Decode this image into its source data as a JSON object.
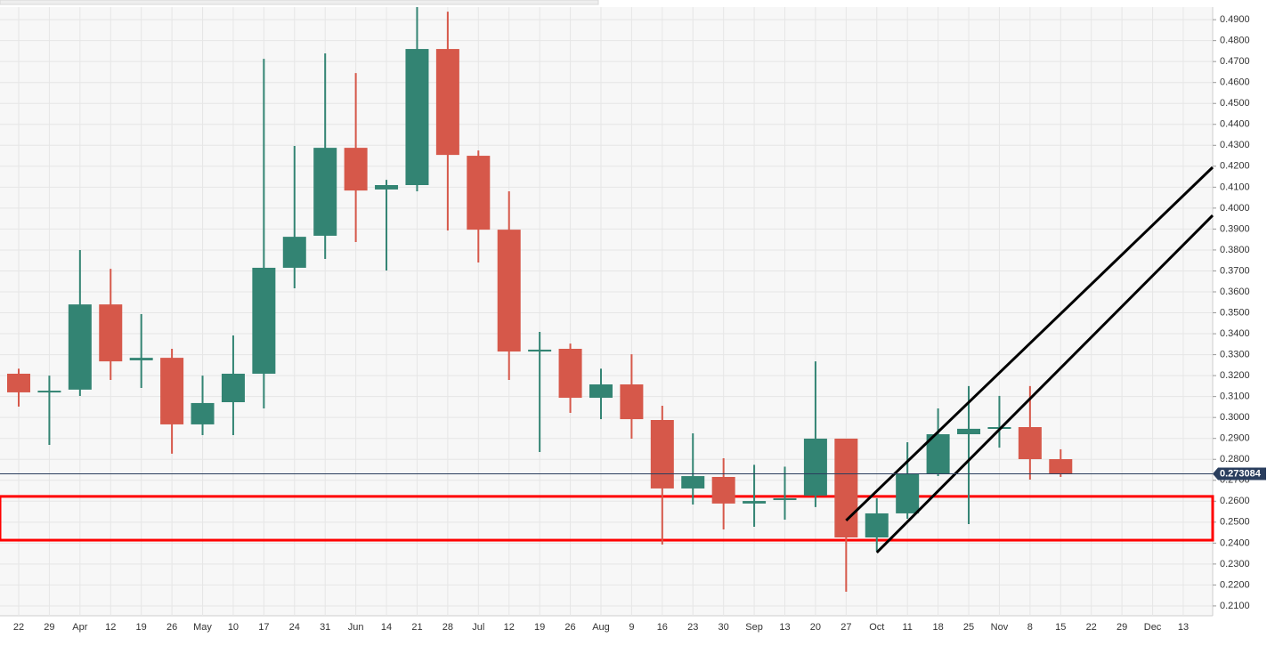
{
  "chart_data": {
    "type": "candlestick",
    "categories": [
      "22",
      "29",
      "Apr",
      "12",
      "19",
      "26",
      "May",
      "10",
      "17",
      "24",
      "31",
      "Jun",
      "14",
      "21",
      "28",
      "Jul",
      "12",
      "19",
      "26",
      "Aug",
      "9",
      "16",
      "23",
      "30",
      "Sep",
      "13",
      "20",
      "27",
      "Oct",
      "11",
      "18",
      "25",
      "Nov",
      "8",
      "15",
      "22",
      "29",
      "Dec",
      "13"
    ],
    "open": [
      0.3209,
      0.3123,
      0.3133,
      0.354,
      0.3273,
      0.3285,
      0.2967,
      0.3073,
      0.3209,
      0.3715,
      0.3868,
      0.4288,
      0.4089,
      0.411,
      0.476,
      0.425,
      0.3897,
      0.3315,
      0.3328,
      0.3094,
      0.3158,
      0.2988,
      0.2661,
      0.2716,
      0.2589,
      0.261,
      0.2627,
      0.2899,
      0.2427,
      0.2542,
      0.2729,
      0.292,
      0.295,
      0.2954,
      0.2801,
      null,
      null,
      null,
      null
    ],
    "high": [
      0.3233,
      0.32,
      0.38,
      0.371,
      0.3494,
      0.3328,
      0.32,
      0.3392,
      0.4713,
      0.4297,
      0.4739,
      0.4645,
      0.4135,
      0.496,
      0.4938,
      0.4275,
      0.408,
      0.3409,
      0.3353,
      0.3233,
      0.3302,
      0.3056,
      0.2924,
      0.2805,
      0.2774,
      0.2765,
      0.3268,
      0.2899,
      0.2614,
      0.2882,
      0.3043,
      0.315,
      0.3103,
      0.315,
      0.2848,
      null,
      null,
      null,
      null
    ],
    "low": [
      0.3052,
      0.2869,
      0.3103,
      0.3179,
      0.3141,
      0.2827,
      0.2916,
      0.2916,
      0.3043,
      0.3617,
      0.3757,
      0.3838,
      0.3702,
      0.408,
      0.3893,
      0.374,
      0.3179,
      0.2835,
      0.3022,
      0.2992,
      0.2899,
      0.2393,
      0.2584,
      0.2465,
      0.2478,
      0.2512,
      0.2572,
      0.2168,
      0.2363,
      0.2516,
      0.272,
      0.2491,
      0.2856,
      0.2703,
      0.2716,
      null,
      null,
      null,
      null
    ],
    "close": [
      0.312,
      0.3128,
      0.354,
      0.3268,
      0.3285,
      0.2967,
      0.3069,
      0.3209,
      0.3715,
      0.3863,
      0.4288,
      0.4084,
      0.411,
      0.476,
      0.4254,
      0.3897,
      0.3315,
      0.3324,
      0.3094,
      0.3158,
      0.2992,
      0.2661,
      0.272,
      0.2589,
      0.2601,
      0.2614,
      0.2899,
      0.2427,
      0.2542,
      0.2729,
      0.292,
      0.2946,
      0.2954,
      0.2801,
      0.2733,
      null,
      null,
      null,
      null
    ],
    "up_color": "#338473",
    "down_color": "#d6584a",
    "ylim": [
      0.2053,
      0.496
    ],
    "yticks": [
      {
        "value": 0.21,
        "label": "0.2100"
      },
      {
        "value": 0.22,
        "label": "0.2200"
      },
      {
        "value": 0.23,
        "label": "0.2300"
      },
      {
        "value": 0.24,
        "label": "0.2400"
      },
      {
        "value": 0.25,
        "label": "0.2500"
      },
      {
        "value": 0.26,
        "label": "0.2600"
      },
      {
        "value": 0.27,
        "label": "0.2700"
      },
      {
        "value": 0.28,
        "label": "0.2800"
      },
      {
        "value": 0.29,
        "label": "0.2900"
      },
      {
        "value": 0.3,
        "label": "0.3000"
      },
      {
        "value": 0.31,
        "label": "0.3100"
      },
      {
        "value": 0.32,
        "label": "0.3200"
      },
      {
        "value": 0.33,
        "label": "0.3300"
      },
      {
        "value": 0.34,
        "label": "0.3400"
      },
      {
        "value": 0.35,
        "label": "0.3500"
      },
      {
        "value": 0.36,
        "label": "0.3600"
      },
      {
        "value": 0.37,
        "label": "0.3700"
      },
      {
        "value": 0.38,
        "label": "0.3800"
      },
      {
        "value": 0.39,
        "label": "0.3900"
      },
      {
        "value": 0.4,
        "label": "0.4000"
      },
      {
        "value": 0.41,
        "label": "0.4100"
      },
      {
        "value": 0.42,
        "label": "0.4200"
      },
      {
        "value": 0.43,
        "label": "0.4300"
      },
      {
        "value": 0.44,
        "label": "0.4400"
      },
      {
        "value": 0.45,
        "label": "0.4500"
      },
      {
        "value": 0.46,
        "label": "0.4600"
      },
      {
        "value": 0.47,
        "label": "0.4700"
      },
      {
        "value": 0.48,
        "label": "0.4800"
      },
      {
        "value": 0.49,
        "label": "0.4900"
      }
    ],
    "grid": true,
    "last_price": 0.273084,
    "zone": {
      "low": 0.2414,
      "high": 0.2623,
      "color": "#ff0000"
    },
    "trendlines": [
      {
        "x": [
          27,
          38.96
        ],
        "y": [
          0.2508,
          0.4195
        ],
        "color": "#000000"
      },
      {
        "x": [
          28,
          38.96
        ],
        "y": [
          0.2355,
          0.3965
        ],
        "color": "#000000"
      }
    ]
  }
}
